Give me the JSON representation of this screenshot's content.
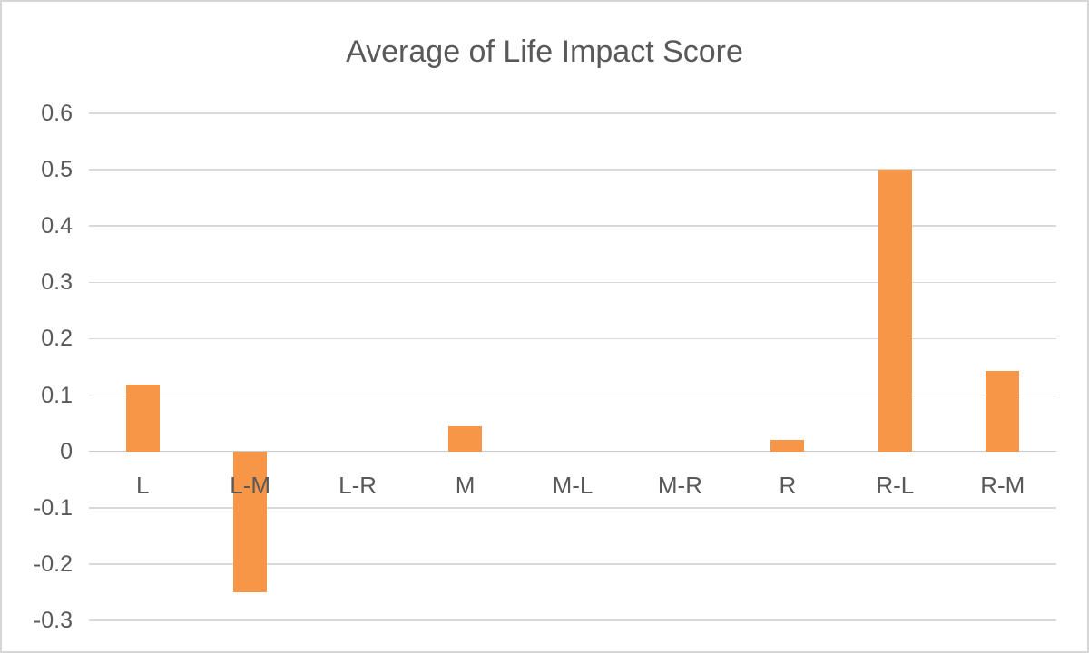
{
  "chart_data": {
    "type": "bar",
    "title": "Average of Life Impact Score",
    "categories": [
      "L",
      "L-M",
      "L-R",
      "M",
      "M-L",
      "M-R",
      "R",
      "R-L",
      "R-M"
    ],
    "values": [
      0.118,
      -0.25,
      0,
      0.045,
      0,
      0,
      0.02,
      0.5,
      0.143
    ],
    "xlabel": "",
    "ylabel": "",
    "ylim": [
      -0.3,
      0.6
    ],
    "ytick_labels": [
      "0.6",
      "0.5",
      "0.4",
      "0.3",
      "0.2",
      "0.1",
      "0",
      "-0.1",
      "-0.2",
      "-0.3"
    ],
    "grid": true,
    "legend": "none",
    "colors": {
      "bar": "#F79646",
      "text": "#595959",
      "gridline": "#D9D9D9",
      "zero_axis": "#C8C8C8",
      "border": "#D6D6D9",
      "background": "#FFFFFF"
    }
  }
}
